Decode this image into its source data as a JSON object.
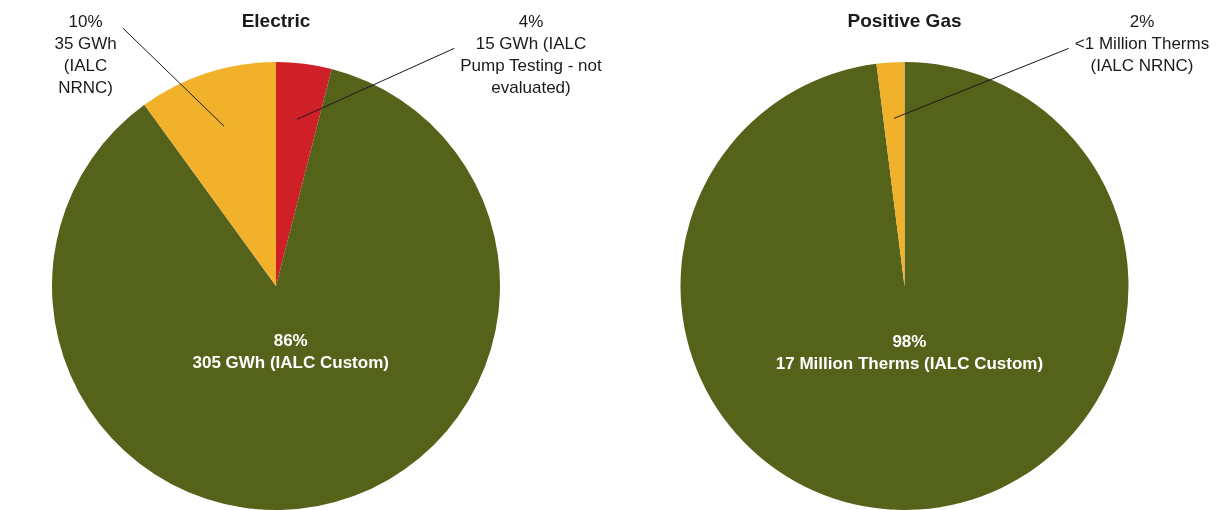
{
  "chart_data": [
    {
      "type": "pie",
      "title": "Electric",
      "categories": [
        "15 GWh (IALC Pump Testing - not evaluated)",
        "305 GWh (IALC Custom)",
        "35 GWh (IALC NRNC)"
      ],
      "values": [
        4,
        86,
        10
      ],
      "value_labels": [
        "4%",
        "86%",
        "10%"
      ],
      "colors": [
        "#d02027",
        "#556219",
        "#f2b12b"
      ]
    },
    {
      "type": "pie",
      "title": "Positive Gas",
      "categories": [
        "17 Million Therms (IALC Custom)",
        "<1 Million Therms (IALC NRNC)"
      ],
      "values": [
        98,
        2
      ],
      "value_labels": [
        "98%",
        "2%"
      ],
      "colors": [
        "#556219",
        "#f2b12b"
      ]
    }
  ]
}
